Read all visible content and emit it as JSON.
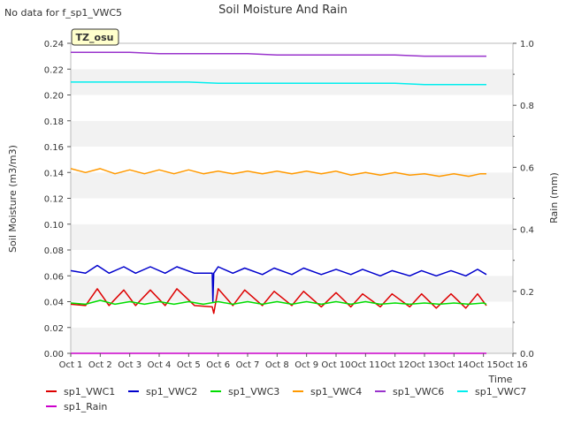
{
  "chart_data": {
    "type": "line",
    "title": "Soil Moisture And Rain",
    "no_data_note": "No data for f_sp1_VWC5",
    "site_badge": "TZ_osu",
    "xlabel": "Time",
    "ylabel": "Soil Moisture (m3/m3)",
    "y2label": "Rain (mm)",
    "x_tick_labels": [
      "Oct 1",
      "Oct 2",
      "Oct 3",
      "Oct 4",
      "Oct 5",
      "Oct 6",
      "Oct 7",
      "Oct 8",
      "Oct 9",
      "Oct 10",
      "Oct 11",
      "Oct 12",
      "Oct 13",
      "Oct 14",
      "Oct 15",
      "Oct 16"
    ],
    "x_range": [
      "Oct 1",
      "Oct 16"
    ],
    "ylim": [
      0,
      0.24
    ],
    "y_ticks": [
      "0.00",
      "0.02",
      "0.04",
      "0.06",
      "0.08",
      "0.10",
      "0.12",
      "0.14",
      "0.16",
      "0.18",
      "0.20",
      "0.22",
      "0.24"
    ],
    "y2lim": [
      0,
      1.0
    ],
    "y2_ticks": [
      "0.0",
      "0.2",
      "0.4",
      "0.6",
      "0.8",
      "1.0"
    ],
    "grid": "horizontal alternating bands",
    "legend_position": "bottom",
    "series": [
      {
        "name": "sp1_VWC1",
        "color": "#dd0000",
        "axis": "left",
        "x": [
          1.0,
          1.5,
          1.9,
          2.3,
          2.8,
          3.2,
          3.7,
          4.2,
          4.6,
          5.2,
          5.8,
          5.85,
          6.0,
          6.5,
          6.9,
          7.5,
          7.9,
          8.5,
          8.9,
          9.5,
          10.0,
          10.5,
          10.9,
          11.5,
          11.9,
          12.5,
          12.9,
          13.4,
          13.9,
          14.4,
          14.8,
          15.1
        ],
        "y": [
          0.038,
          0.037,
          0.05,
          0.037,
          0.049,
          0.037,
          0.049,
          0.037,
          0.05,
          0.037,
          0.036,
          0.031,
          0.05,
          0.037,
          0.049,
          0.037,
          0.048,
          0.037,
          0.048,
          0.036,
          0.047,
          0.036,
          0.046,
          0.036,
          0.046,
          0.036,
          0.046,
          0.035,
          0.046,
          0.035,
          0.046,
          0.037
        ]
      },
      {
        "name": "sp1_VWC2",
        "color": "#0000cc",
        "axis": "left",
        "x": [
          1.0,
          1.5,
          1.9,
          2.3,
          2.8,
          3.2,
          3.7,
          4.2,
          4.6,
          5.2,
          5.8,
          5.82,
          5.85,
          6.0,
          6.5,
          6.9,
          7.5,
          7.9,
          8.5,
          8.9,
          9.5,
          10.0,
          10.5,
          10.9,
          11.5,
          11.9,
          12.5,
          12.9,
          13.4,
          13.9,
          14.4,
          14.8,
          15.1
        ],
        "y": [
          0.064,
          0.062,
          0.068,
          0.062,
          0.067,
          0.062,
          0.067,
          0.062,
          0.067,
          0.062,
          0.062,
          0.04,
          0.062,
          0.067,
          0.062,
          0.066,
          0.061,
          0.066,
          0.061,
          0.066,
          0.061,
          0.065,
          0.061,
          0.065,
          0.06,
          0.064,
          0.06,
          0.064,
          0.06,
          0.064,
          0.06,
          0.065,
          0.061
        ]
      },
      {
        "name": "sp1_VWC3",
        "color": "#00dd00",
        "axis": "left",
        "x": [
          1.0,
          1.5,
          2.0,
          2.5,
          3.0,
          3.5,
          4.0,
          4.5,
          5.0,
          5.5,
          6.0,
          6.5,
          7.0,
          7.5,
          8.0,
          8.5,
          9.0,
          9.5,
          10.0,
          10.5,
          11.0,
          11.5,
          12.0,
          12.5,
          13.0,
          13.5,
          14.0,
          14.5,
          15.0,
          15.1
        ],
        "y": [
          0.039,
          0.038,
          0.041,
          0.038,
          0.04,
          0.038,
          0.04,
          0.038,
          0.04,
          0.038,
          0.04,
          0.038,
          0.04,
          0.038,
          0.04,
          0.038,
          0.04,
          0.038,
          0.04,
          0.038,
          0.04,
          0.038,
          0.039,
          0.038,
          0.039,
          0.038,
          0.039,
          0.038,
          0.039,
          0.038
        ]
      },
      {
        "name": "sp1_VWC4",
        "color": "#ff9900",
        "axis": "left",
        "x": [
          1.0,
          1.5,
          2.0,
          2.5,
          3.0,
          3.5,
          4.0,
          4.5,
          5.0,
          5.5,
          6.0,
          6.5,
          7.0,
          7.5,
          8.0,
          8.5,
          9.0,
          9.5,
          10.0,
          10.5,
          11.0,
          11.5,
          12.0,
          12.5,
          13.0,
          13.5,
          14.0,
          14.5,
          14.9,
          15.1
        ],
        "y": [
          0.143,
          0.14,
          0.143,
          0.139,
          0.142,
          0.139,
          0.142,
          0.139,
          0.142,
          0.139,
          0.141,
          0.139,
          0.141,
          0.139,
          0.141,
          0.139,
          0.141,
          0.139,
          0.141,
          0.138,
          0.14,
          0.138,
          0.14,
          0.138,
          0.139,
          0.137,
          0.139,
          0.137,
          0.139,
          0.139
        ]
      },
      {
        "name": "sp1_VWC6",
        "color": "#9933cc",
        "axis": "left",
        "x": [
          1.0,
          2.0,
          3.0,
          4.0,
          5.0,
          6.0,
          7.0,
          8.0,
          9.0,
          10.0,
          11.0,
          12.0,
          13.0,
          14.0,
          15.1
        ],
        "y": [
          0.233,
          0.233,
          0.233,
          0.232,
          0.232,
          0.232,
          0.232,
          0.231,
          0.231,
          0.231,
          0.231,
          0.231,
          0.23,
          0.23,
          0.23
        ]
      },
      {
        "name": "sp1_VWC7",
        "color": "#00eeee",
        "axis": "left",
        "x": [
          1.0,
          2.0,
          3.0,
          4.0,
          5.0,
          6.0,
          7.0,
          8.0,
          9.0,
          10.0,
          11.0,
          12.0,
          13.0,
          14.0,
          15.1
        ],
        "y": [
          0.21,
          0.21,
          0.21,
          0.21,
          0.21,
          0.209,
          0.209,
          0.209,
          0.209,
          0.209,
          0.209,
          0.209,
          0.208,
          0.208,
          0.208
        ]
      },
      {
        "name": "sp1_Rain",
        "color": "#cc00cc",
        "axis": "right",
        "x": [
          1.0,
          15.1
        ],
        "y": [
          0.0,
          0.0
        ]
      }
    ]
  }
}
